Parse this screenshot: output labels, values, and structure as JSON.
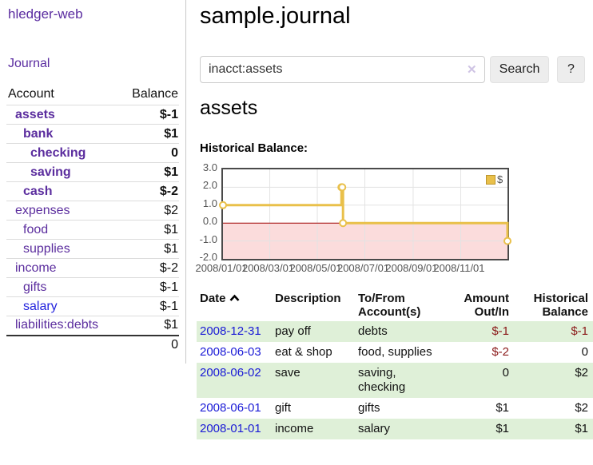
{
  "sidebar": {
    "brand": "hledger-web",
    "journal_link": "Journal",
    "accounts_table": {
      "headers": {
        "account": "Account",
        "balance": "Balance"
      },
      "rows": [
        {
          "name": "assets",
          "balance": "$-1"
        },
        {
          "name": "bank",
          "balance": "$1"
        },
        {
          "name": "checking",
          "balance": "0"
        },
        {
          "name": "saving",
          "balance": "$1"
        },
        {
          "name": "cash",
          "balance": "$-2"
        },
        {
          "name": "expenses",
          "balance": "$2"
        },
        {
          "name": "food",
          "balance": "$1"
        },
        {
          "name": "supplies",
          "balance": "$1"
        },
        {
          "name": "income",
          "balance": "$-2"
        },
        {
          "name": "gifts",
          "balance": "$-1"
        },
        {
          "name": "salary",
          "balance": "$-1"
        },
        {
          "name": "liabilities:debts",
          "balance": "$1"
        }
      ],
      "total": "0"
    }
  },
  "main": {
    "title": "sample.journal",
    "search": {
      "value": "inacct:assets",
      "clear_icon": "✕",
      "search_button": "Search",
      "help_button": "?"
    },
    "account_heading": "assets",
    "chart_label": "Historical Balance:"
  },
  "chart_data": {
    "type": "line",
    "title": "Historical Balance:",
    "series": [
      {
        "name": "$",
        "step": true,
        "points": [
          [
            "2008-01-01",
            1
          ],
          [
            "2008-06-01",
            2
          ],
          [
            "2008-06-02",
            2
          ],
          [
            "2008-06-03",
            0
          ],
          [
            "2008-12-31",
            -1
          ]
        ]
      }
    ],
    "ylim": [
      -2,
      3
    ],
    "y_ticks": [
      "3.0",
      "2.0",
      "1.0",
      "0.0",
      "-1.0",
      "-2.0"
    ],
    "x_ticks": [
      "2008/01/01",
      "2008/03/01",
      "2008/05/01",
      "2008/07/01",
      "2008/09/01",
      "2008/11/01"
    ],
    "x_range": [
      "2008-01-01",
      "2008-12-31"
    ],
    "legend_position": "top-right",
    "grid": true,
    "line_color": "#e9c04a",
    "marker_fill": "#ffffff",
    "negative_region_color": "#fbdcdc",
    "zero_line_color": "#a00000",
    "grid_color": "#e3e3e3"
  },
  "register": {
    "headers": {
      "date": "Date",
      "description": "Description",
      "accounts": "To/From Account(s)",
      "amount": "Amount Out/In",
      "balance": "Historical Balance"
    },
    "rows": [
      {
        "date": "2008-12-31",
        "description": "pay off",
        "accounts": "debts",
        "amount": "$-1",
        "balance": "$-1"
      },
      {
        "date": "2008-06-03",
        "description": "eat & shop",
        "accounts": "food, supplies",
        "amount": "$-2",
        "balance": "0"
      },
      {
        "date": "2008-06-02",
        "description": "save",
        "accounts": "saving, checking",
        "amount": "0",
        "balance": "$2"
      },
      {
        "date": "2008-06-01",
        "description": "gift",
        "accounts": "gifts",
        "amount": "$1",
        "balance": "$2"
      },
      {
        "date": "2008-01-01",
        "description": "income",
        "accounts": "salary",
        "amount": "$1",
        "balance": "$1"
      }
    ]
  }
}
